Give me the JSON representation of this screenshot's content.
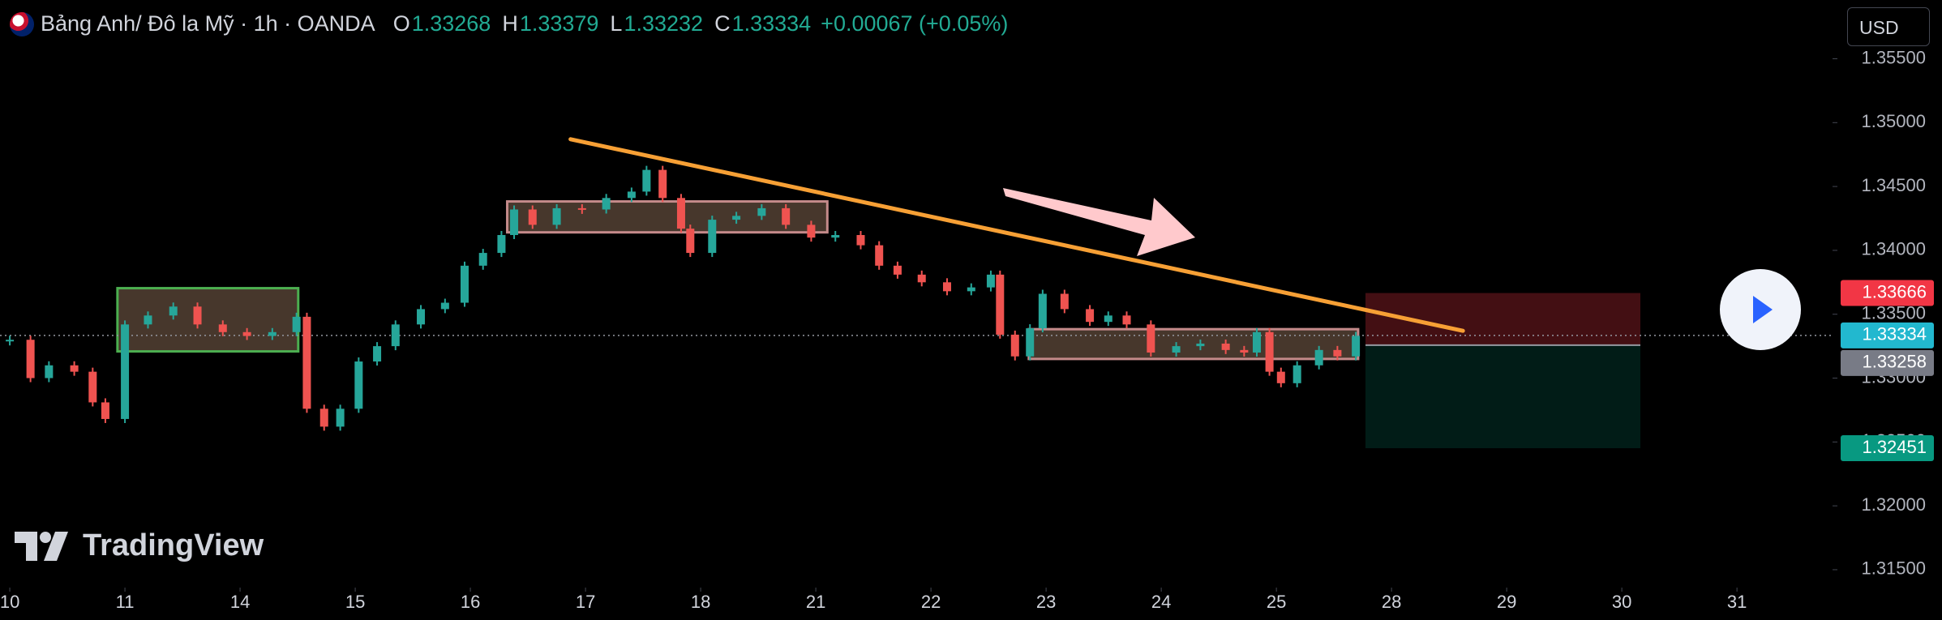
{
  "header": {
    "symbol": "Bảng Anh/ Đô la Mỹ · 1h · OANDA",
    "ohlc": [
      {
        "label": "O",
        "value": "1.33268"
      },
      {
        "label": "H",
        "value": "1.33379"
      },
      {
        "label": "L",
        "value": "1.33232"
      },
      {
        "label": "C",
        "value": "1.33334"
      }
    ],
    "change": "+0.00067 (+0.05%)"
  },
  "currency_button": "USD",
  "logo": "TradingView",
  "chart_data": {
    "type": "candlestick",
    "up_color": "#26a69a",
    "down_color": "#ef5350",
    "grid": false,
    "x": [
      0,
      0.18,
      0.34,
      0.56,
      0.72,
      0.83,
      1.0,
      1.2,
      1.42,
      1.63,
      1.85,
      2.06,
      2.28,
      2.49,
      2.58,
      2.73,
      2.87,
      3.03,
      3.19,
      3.35,
      3.57,
      3.78,
      3.95,
      4.11,
      4.27,
      4.38,
      4.54,
      4.75,
      4.97,
      5.18,
      5.4,
      5.53,
      5.67,
      5.83,
      5.91,
      6.1,
      6.31,
      6.53,
      6.74,
      6.96,
      7.17,
      7.39,
      7.55,
      7.71,
      7.92,
      8.14,
      8.35,
      8.52,
      8.6,
      8.73,
      8.86,
      8.97,
      9.16,
      9.38,
      9.54,
      9.7,
      9.91,
      10.13,
      10.34,
      10.56,
      10.72,
      10.83,
      10.94,
      11.04,
      11.18,
      11.37,
      11.53,
      11.69
    ],
    "close": [
      1.333,
      1.33,
      1.331,
      1.3305,
      1.3281,
      1.3268,
      1.3342,
      1.3349,
      1.3356,
      1.3342,
      1.3336,
      1.3333,
      1.3336,
      1.3348,
      1.3276,
      1.3262,
      1.3276,
      1.3313,
      1.3325,
      1.3342,
      1.3354,
      1.3359,
      1.3388,
      1.3398,
      1.3412,
      1.3432,
      1.342,
      1.3433,
      1.3432,
      1.3441,
      1.3446,
      1.3463,
      1.3441,
      1.3417,
      1.3398,
      1.3424,
      1.3427,
      1.3433,
      1.342,
      1.341,
      1.3412,
      1.3404,
      1.3388,
      1.3381,
      1.3375,
      1.3368,
      1.3371,
      1.3381,
      1.3334,
      1.3317,
      1.3339,
      1.3366,
      1.3354,
      1.3344,
      1.3349,
      1.3342,
      1.332,
      1.3325,
      1.3327,
      1.3322,
      1.332,
      1.3336,
      1.3305,
      1.3296,
      1.331,
      1.3322,
      1.3317,
      1.3333
    ],
    "xlim": [
      -0.085,
      15.83
    ],
    "ylim": [
      1.3136,
      1.3596
    ],
    "xticks": [
      {
        "value": 0,
        "label": "10"
      },
      {
        "value": 1,
        "label": "11"
      },
      {
        "value": 2,
        "label": "14"
      },
      {
        "value": 3,
        "label": "15"
      },
      {
        "value": 4,
        "label": "16"
      },
      {
        "value": 5,
        "label": "17"
      },
      {
        "value": 6,
        "label": "18"
      },
      {
        "value": 7,
        "label": "21"
      },
      {
        "value": 8,
        "label": "22"
      },
      {
        "value": 9,
        "label": "23"
      },
      {
        "value": 10,
        "label": "24"
      },
      {
        "value": 11,
        "label": "25"
      },
      {
        "value": 12,
        "label": "28"
      },
      {
        "value": 13,
        "label": "29"
      },
      {
        "value": 14,
        "label": "30"
      },
      {
        "value": 15,
        "label": "31"
      }
    ],
    "yticks": [
      {
        "value": 1.355,
        "label": "1.35500"
      },
      {
        "value": 1.35,
        "label": "1.35000"
      },
      {
        "value": 1.345,
        "label": "1.34500"
      },
      {
        "value": 1.34,
        "label": "1.34000"
      },
      {
        "value": 1.335,
        "label": "1.33500"
      },
      {
        "value": 1.33,
        "label": "1.33000"
      },
      {
        "value": 1.325,
        "label": "1.32500"
      },
      {
        "value": 1.32,
        "label": "1.32000"
      },
      {
        "value": 1.315,
        "label": "1.31500"
      }
    ],
    "zones": [
      {
        "x": [
          0.935,
          2.505
        ],
        "y": [
          1.33209,
          1.33704
        ],
        "color": "#4caf50"
      },
      {
        "x": [
          4.32,
          7.1
        ],
        "y": [
          1.34141,
          1.34383
        ],
        "color": "#c48a8a"
      },
      {
        "x": [
          8.85,
          11.71
        ],
        "y": [
          1.3315,
          1.33383
        ],
        "color": "#c48a8a"
      }
    ],
    "trendline": {
      "x": [
        4.87,
        12.62
      ],
      "y": [
        1.3487,
        1.3337
      ],
      "color": "#f7a035"
    },
    "price_labels": [
      {
        "value": 1.33666,
        "color": "#f23645"
      },
      {
        "value": 1.33334,
        "color": "#22b8cf"
      },
      {
        "value": 1.33258,
        "color": "#787b86"
      },
      {
        "value": 1.32451,
        "color": "#089981"
      }
    ]
  }
}
